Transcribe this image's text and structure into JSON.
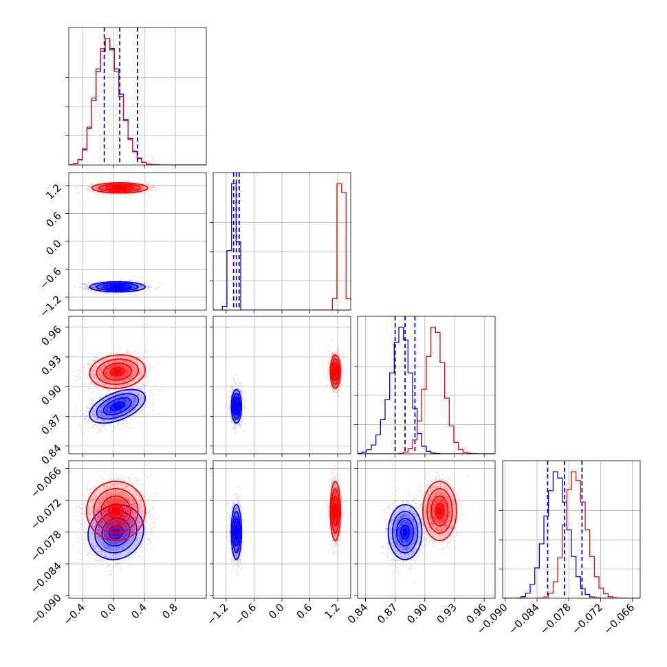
{
  "chart_data": {
    "type": "corner",
    "title": "",
    "grid": true,
    "colors": {
      "series_a": "#0000ff",
      "series_b": "#ff0000"
    },
    "parameters": [
      {
        "range": [
          -0.58,
          1.2
        ],
        "ticks": [
          -0.4,
          0.0,
          0.4,
          0.8
        ],
        "tick_labels": [
          "−0.4",
          "0.0",
          "0.4",
          "0.8"
        ]
      },
      {
        "range": [
          -1.48,
          1.48
        ],
        "ticks": [
          -1.2,
          -0.6,
          0.0,
          0.6,
          1.2
        ],
        "tick_labels": [
          "−1.2",
          "−0.6",
          "0.0",
          "0.6",
          "1.2"
        ]
      },
      {
        "range": [
          0.832,
          0.971
        ],
        "ticks": [
          0.84,
          0.87,
          0.9,
          0.93,
          0.96
        ],
        "tick_labels": [
          "0.84",
          "0.87",
          "0.90",
          "0.93",
          "0.96"
        ]
      },
      {
        "range": [
          -0.0905,
          -0.0645
        ],
        "ticks": [
          -0.09,
          -0.084,
          -0.078,
          -0.072,
          -0.066
        ],
        "tick_labels": [
          "−0.090",
          "−0.084",
          "−0.078",
          "−0.072",
          "−0.066"
        ]
      }
    ],
    "series": [
      {
        "color": "#0000ff",
        "quantiles": [
          [
            -0.12,
            0.08,
            0.31
          ],
          [
            -1.04,
            -0.98,
            -0.92
          ],
          [
            0.87,
            0.88,
            0.89
          ],
          [
            -0.082,
            -0.0788,
            -0.0755
          ]
        ],
        "histograms": [
          {
            "edges_start": -0.58,
            "bin_width": 0.059,
            "counts": [
              2,
              10,
              40,
              120,
              290,
              510,
              740,
              900,
              1000,
              920,
              760,
              560,
              360,
              210,
              110,
              55,
              22,
              8,
              3,
              1,
              0,
              0,
              0,
              0,
              0,
              0,
              0,
              0,
              0,
              0
            ]
          },
          {
            "edges_start": -1.48,
            "bin_width": 0.0987,
            "counts": [
              0,
              0,
              30,
              470,
              1000,
              540,
              0,
              0,
              0,
              0,
              0,
              0,
              0,
              0,
              0,
              0,
              0,
              0,
              0,
              0,
              0,
              0,
              0,
              0,
              0,
              0,
              0,
              0,
              0,
              0
            ]
          },
          {
            "edges_start": 0.832,
            "bin_width": 0.004633,
            "counts": [
              4,
              14,
              34,
              70,
              150,
              270,
              430,
              640,
              880,
              1000,
              900,
              640,
              360,
              160,
              60,
              20,
              6,
              2,
              0,
              0,
              0,
              0,
              0,
              0,
              0,
              0,
              0,
              0,
              0,
              0
            ]
          },
          {
            "edges_start": -0.0905,
            "bin_width": 0.000867,
            "counts": [
              0,
              0,
              0,
              2,
              12,
              40,
              110,
              240,
              430,
              650,
              850,
              1000,
              950,
              760,
              540,
              330,
              170,
              75,
              30,
              10,
              3,
              0,
              0,
              0,
              0,
              0,
              0,
              0,
              0,
              0
            ]
          }
        ],
        "scatter": {
          "0_1": {
            "center": [
              0.05,
              -0.98
            ],
            "std": [
              0.18,
              0.055
            ],
            "rho": 0.0
          },
          "0_2": {
            "center": [
              0.05,
              0.88
            ],
            "std": [
              0.18,
              0.0085
            ],
            "rho": 0.5
          },
          "1_2": {
            "center": [
              -0.98,
              0.88
            ],
            "std": [
              0.055,
              0.0085
            ],
            "rho": 0.0
          },
          "0_3": {
            "center": [
              0.03,
              -0.078
            ],
            "std": [
              0.18,
              0.0026
            ],
            "rho": 0.1
          },
          "1_3": {
            "center": [
              -0.98,
              -0.078
            ],
            "std": [
              0.055,
              0.0026
            ],
            "rho": 0.0
          },
          "2_3": {
            "center": [
              0.88,
              -0.078
            ],
            "std": [
              0.0085,
              0.0026
            ],
            "rho": 0.0
          }
        }
      },
      {
        "color": "#ff0000",
        "histograms": [
          {
            "edges_start": -0.58,
            "bin_width": 0.059,
            "counts": [
              2,
              12,
              45,
              130,
              300,
              530,
              760,
              920,
              1000,
              910,
              740,
              540,
              350,
              200,
              105,
              50,
              20,
              7,
              3,
              1,
              0,
              0,
              0,
              0,
              0,
              0,
              0,
              0,
              0,
              0
            ]
          },
          {
            "edges_start": -1.48,
            "bin_width": 0.0987,
            "counts": [
              0,
              0,
              0,
              0,
              0,
              0,
              0,
              0,
              0,
              0,
              0,
              0,
              0,
              0,
              0,
              0,
              0,
              0,
              0,
              0,
              0,
              0,
              0,
              0,
              0,
              0,
              90,
              1000,
              930,
              90
            ]
          },
          {
            "edges_start": 0.832,
            "bin_width": 0.004633,
            "counts": [
              0,
              0,
              0,
              0,
              0,
              0,
              0,
              0,
              0,
              3,
              14,
              40,
              110,
              260,
              510,
              770,
              1000,
              960,
              720,
              440,
              220,
              90,
              35,
              12,
              4,
              1,
              0,
              0,
              0,
              0
            ]
          },
          {
            "edges_start": -0.0905,
            "bin_width": 0.000867,
            "counts": [
              0,
              0,
              0,
              0,
              0,
              0,
              0,
              0,
              2,
              10,
              40,
              130,
              320,
              580,
              860,
              1000,
              930,
              760,
              540,
              330,
              170,
              80,
              35,
              12,
              4,
              1,
              0,
              0,
              0,
              0
            ]
          }
        ],
        "scatter": {
          "0_1": {
            "center": [
              0.08,
              1.15
            ],
            "std": [
              0.18,
              0.055
            ],
            "rho": 0.0
          },
          "0_2": {
            "center": [
              0.05,
              0.915
            ],
            "std": [
              0.18,
              0.0085
            ],
            "rho": 0.1
          },
          "1_2": {
            "center": [
              1.15,
              0.915
            ],
            "std": [
              0.055,
              0.0085
            ],
            "rho": 0.0
          },
          "0_3": {
            "center": [
              0.03,
              -0.074
            ],
            "std": [
              0.19,
              0.0028
            ],
            "rho": 0.0
          },
          "1_3": {
            "center": [
              1.15,
              -0.074
            ],
            "std": [
              0.055,
              0.0028
            ],
            "rho": 0.0
          },
          "2_3": {
            "center": [
              0.915,
              -0.074
            ],
            "std": [
              0.0085,
              0.0028
            ],
            "rho": 0.0
          }
        }
      }
    ]
  }
}
